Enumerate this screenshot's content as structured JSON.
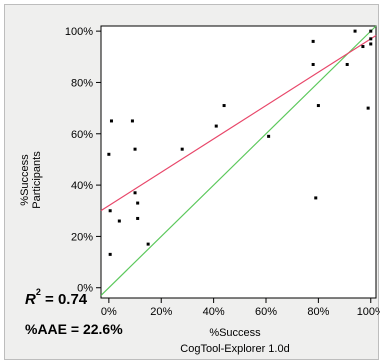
{
  "chart_data": {
    "type": "scatter",
    "xlabel_lines": [
      "%Success",
      "CogTool-Explorer 1.0d"
    ],
    "ylabel_lines": [
      "%Success",
      "Participants"
    ],
    "xlim": [
      -3,
      102
    ],
    "ylim": [
      -4,
      102
    ],
    "x_ticks": [
      "0%",
      "20%",
      "40%",
      "60%",
      "80%",
      "100%"
    ],
    "y_ticks": [
      "0%",
      "20%",
      "40%",
      "60%",
      "80%",
      "100%"
    ],
    "x_tick_values": [
      0,
      20,
      40,
      60,
      80,
      100
    ],
    "y_tick_values": [
      0,
      20,
      40,
      60,
      80,
      100
    ],
    "points": [
      [
        0,
        52
      ],
      [
        1,
        65
      ],
      [
        0.5,
        30
      ],
      [
        0.5,
        13
      ],
      [
        4,
        26
      ],
      [
        9,
        65
      ],
      [
        10,
        54
      ],
      [
        10,
        37
      ],
      [
        11,
        33
      ],
      [
        11,
        27
      ],
      [
        15,
        17
      ],
      [
        28,
        54
      ],
      [
        41,
        63
      ],
      [
        44,
        71
      ],
      [
        61,
        59
      ],
      [
        78,
        96
      ],
      [
        78,
        87
      ],
      [
        80,
        71
      ],
      [
        79,
        35
      ],
      [
        91,
        87
      ],
      [
        94,
        100
      ],
      [
        97,
        94
      ],
      [
        99,
        70
      ],
      [
        100,
        100
      ],
      [
        100,
        97
      ],
      [
        100,
        95
      ]
    ],
    "regression": {
      "slope": 0.65,
      "intercept": 32,
      "color": "#e8476a"
    },
    "identity_line": {
      "color": "#5cc85c"
    },
    "point_color": "#000000",
    "r_squared_label": "= 0.74",
    "aae_label": "%AAE = 22.6%"
  }
}
